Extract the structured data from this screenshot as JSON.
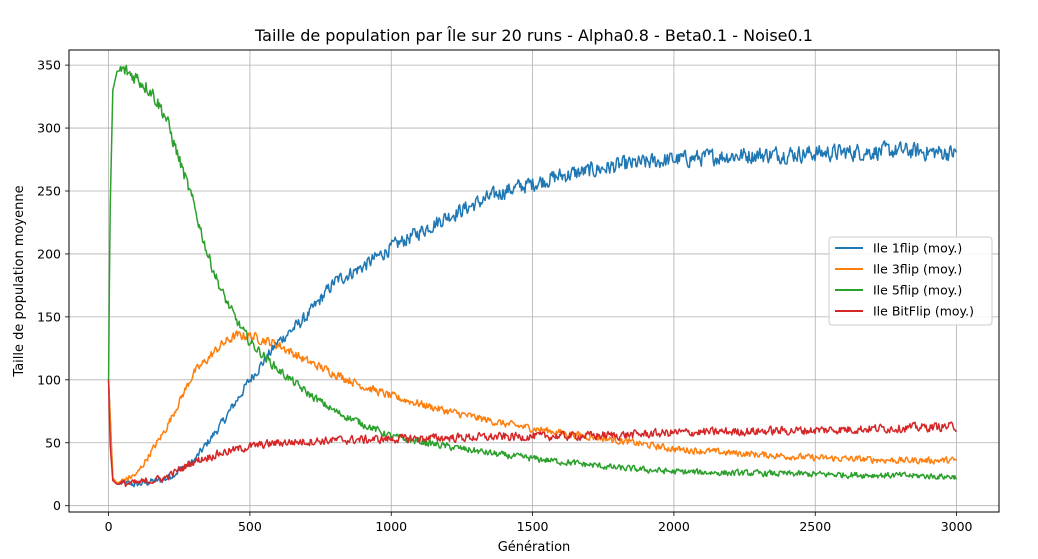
{
  "chart_data": {
    "type": "line",
    "title": "Taille de population par Île sur 20 runs - Alpha0.8 - Beta0.1 - Noise0.1",
    "xlabel": "Génération",
    "ylabel": "Taille de population moyenne",
    "xlim": [
      -140,
      3150
    ],
    "ylim": [
      -5,
      362
    ],
    "xticks": [
      0,
      500,
      1000,
      1500,
      2000,
      2500,
      3000
    ],
    "yticks": [
      0,
      50,
      100,
      150,
      200,
      250,
      300,
      350
    ],
    "grid": true,
    "legend_position": "right",
    "series": [
      {
        "name": "Ile 1flip (moy.)",
        "color": "#1f77b4",
        "noise": 6,
        "points": [
          [
            0,
            100
          ],
          [
            15,
            22
          ],
          [
            30,
            18
          ],
          [
            100,
            17
          ],
          [
            200,
            21
          ],
          [
            300,
            35
          ],
          [
            400,
            65
          ],
          [
            500,
            100
          ],
          [
            600,
            130
          ],
          [
            700,
            150
          ],
          [
            800,
            178
          ],
          [
            900,
            190
          ],
          [
            1000,
            205
          ],
          [
            1200,
            230
          ],
          [
            1400,
            250
          ],
          [
            1600,
            262
          ],
          [
            1800,
            270
          ],
          [
            2000,
            275
          ],
          [
            2200,
            278
          ],
          [
            2500,
            280
          ],
          [
            2800,
            282
          ],
          [
            3000,
            280
          ]
        ]
      },
      {
        "name": "Ile 3flip (moy.)",
        "color": "#ff7f0e",
        "noise": 5,
        "points": [
          [
            0,
            100
          ],
          [
            15,
            22
          ],
          [
            30,
            18
          ],
          [
            100,
            25
          ],
          [
            200,
            60
          ],
          [
            300,
            105
          ],
          [
            400,
            128
          ],
          [
            450,
            135
          ],
          [
            500,
            135
          ],
          [
            600,
            128
          ],
          [
            700,
            115
          ],
          [
            800,
            105
          ],
          [
            900,
            95
          ],
          [
            1000,
            87
          ],
          [
            1200,
            75
          ],
          [
            1400,
            65
          ],
          [
            1600,
            58
          ],
          [
            1800,
            52
          ],
          [
            2000,
            45
          ],
          [
            2200,
            42
          ],
          [
            2500,
            38
          ],
          [
            2800,
            36
          ],
          [
            3000,
            36
          ]
        ]
      },
      {
        "name": "Ile 5flip (moy.)",
        "color": "#2ca02c",
        "noise": 5,
        "points": [
          [
            0,
            100
          ],
          [
            5,
            230
          ],
          [
            15,
            330
          ],
          [
            30,
            345
          ],
          [
            50,
            346
          ],
          [
            100,
            340
          ],
          [
            150,
            330
          ],
          [
            200,
            310
          ],
          [
            250,
            275
          ],
          [
            300,
            240
          ],
          [
            350,
            200
          ],
          [
            400,
            170
          ],
          [
            450,
            148
          ],
          [
            500,
            130
          ],
          [
            600,
            108
          ],
          [
            700,
            90
          ],
          [
            800,
            75
          ],
          [
            900,
            65
          ],
          [
            1000,
            55
          ],
          [
            1200,
            47
          ],
          [
            1400,
            40
          ],
          [
            1600,
            35
          ],
          [
            1800,
            30
          ],
          [
            2000,
            27
          ],
          [
            2200,
            26
          ],
          [
            2500,
            25
          ],
          [
            2800,
            24
          ],
          [
            3000,
            23
          ]
        ]
      },
      {
        "name": "Ile BitFlip (moy.)",
        "color": "#d62728",
        "noise": 6,
        "points": [
          [
            0,
            100
          ],
          [
            5,
            50
          ],
          [
            15,
            20
          ],
          [
            30,
            17
          ],
          [
            100,
            18
          ],
          [
            200,
            22
          ],
          [
            300,
            35
          ],
          [
            400,
            42
          ],
          [
            500,
            47
          ],
          [
            600,
            50
          ],
          [
            700,
            51
          ],
          [
            800,
            52
          ],
          [
            1000,
            53
          ],
          [
            1200,
            54
          ],
          [
            1500,
            55
          ],
          [
            1800,
            56
          ],
          [
            2000,
            58
          ],
          [
            2500,
            60
          ],
          [
            3000,
            63
          ]
        ]
      }
    ]
  }
}
